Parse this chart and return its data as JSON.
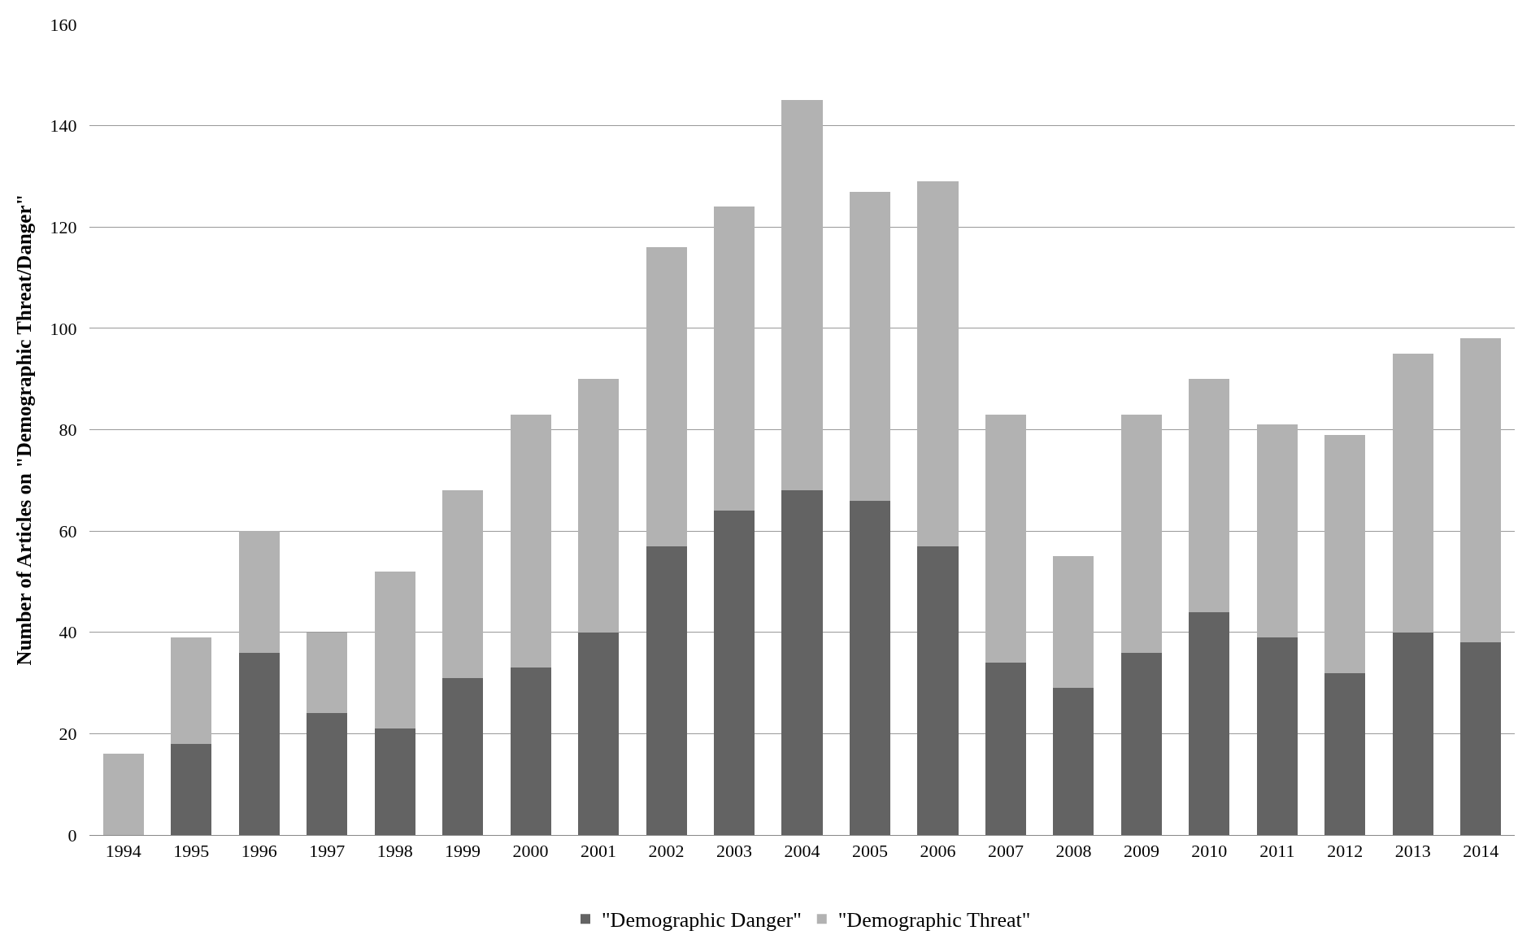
{
  "chart_data": {
    "type": "bar",
    "stacked": true,
    "ylabel": "Number of Articles on \"Demographic Threat/Danger\"",
    "categories": [
      "1994",
      "1995",
      "1996",
      "1997",
      "1998",
      "1999",
      "2000",
      "2001",
      "2002",
      "2003",
      "2004",
      "2005",
      "2006",
      "2007",
      "2008",
      "2009",
      "2010",
      "2011",
      "2012",
      "2013",
      "2014"
    ],
    "series": [
      {
        "name": "\"Demographic Danger\"",
        "color": "#636363",
        "values": [
          0,
          18,
          36,
          24,
          21,
          31,
          33,
          40,
          57,
          64,
          68,
          66,
          57,
          34,
          29,
          36,
          44,
          39,
          32,
          40,
          38
        ]
      },
      {
        "name": "\"Demographic Threat\"",
        "color": "#b2b2b2",
        "values": [
          16,
          21,
          24,
          16,
          31,
          37,
          50,
          50,
          59,
          60,
          77,
          61,
          72,
          49,
          26,
          47,
          46,
          42,
          47,
          55,
          60
        ]
      }
    ],
    "ylim": [
      0,
      160
    ],
    "yticks": [
      0,
      20,
      40,
      60,
      80,
      100,
      120,
      140,
      160
    ],
    "grid": "y",
    "legend": "bottom"
  }
}
